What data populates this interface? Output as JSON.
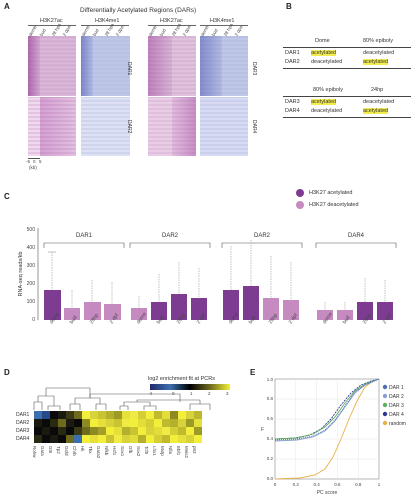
{
  "panelA": {
    "label": "A",
    "title": "Differentially Acetylated Regions (DARs)",
    "left": {
      "groups": [
        "H3K27ac",
        "H3K4me1"
      ],
      "samples": [
        "2 dpa",
        "28 hpa",
        "bud",
        "demb"
      ],
      "regions": [
        "DAR1",
        "DAR2"
      ]
    },
    "right": {
      "groups": [
        "H3K27ac",
        "H3K4me1"
      ],
      "samples": [
        "2 dpa",
        "28 hpa",
        "bud",
        "demb"
      ],
      "regions": [
        "DAR3",
        "DAR4"
      ]
    },
    "axis": {
      "ticks": [
        "-5",
        "0",
        "5"
      ],
      "unit": "(kb)"
    }
  },
  "panelB": {
    "label": "B",
    "table1": {
      "headers": [
        "",
        "Dome",
        "80% epiboly"
      ],
      "rows": [
        [
          "DAR1",
          "acetylated",
          "deacetylated"
        ],
        [
          "DAR2",
          "deacetylated",
          "acetylated"
        ]
      ]
    },
    "table2": {
      "headers": [
        "",
        "80% epiboly",
        "24hp"
      ],
      "rows": [
        [
          "DAR3",
          "acetylated",
          "deacetylated"
        ],
        [
          "DAR4",
          "deacetylated",
          "acetylated"
        ]
      ]
    }
  },
  "panelC": {
    "label": "C",
    "legend": [
      "H3K27 acetylated",
      "H3K27 deacetylated"
    ],
    "colors": {
      "acetylated": "#7d3c92",
      "deacetylated": "#c58ac0"
    },
    "groups": [
      "DAR1",
      "DAR2",
      "DAR2",
      "DAR4"
    ],
    "ylabel": "RNA-seq reads/kb",
    "yticks": [
      "0",
      "100",
      "200",
      "300",
      "400",
      "500"
    ],
    "xlabels": [
      "dome",
      "bud",
      "28hp",
      "2 dpf"
    ]
  },
  "panelD": {
    "label": "D",
    "color_title": "log2 enrichment fit at PCRs",
    "color_ticks": [
      "-4",
      "0",
      "1",
      "2",
      "3"
    ],
    "rows": [
      "DAR1",
      "DAR2",
      "DAR3",
      "DAR4"
    ],
    "cols": [
      "Rohw",
      "Gata",
      "Gt5",
      "Tp2",
      "Gsfd",
      "Chrb",
      "Hk",
      "Tbx",
      "Gata2",
      "Nfkb",
      "Hsf1",
      "Sox1",
      "Gfb",
      "Sox2",
      "Tcf5",
      "Lhx1",
      "Mxtp",
      "Nfia",
      "Ebf1",
      "Meis2",
      "p53"
    ]
  },
  "panelE": {
    "label": "E",
    "xlabel": "PC score",
    "xticks": [
      "0",
      "0.2",
      "0.4",
      "0.6",
      "0.8",
      "1"
    ],
    "yticks": [
      "0.0",
      "0.2",
      "0.4",
      "0.6",
      "0.8",
      "1.0"
    ],
    "ylabel": "F",
    "legend": [
      "DAR 1",
      "DAR 2",
      "DAR 3",
      "DAR 4",
      "random"
    ],
    "colors": [
      "#4f6fb3",
      "#8aa0cf",
      "#5fae5f",
      "#2d3a8c",
      "#e8b14a"
    ]
  }
}
